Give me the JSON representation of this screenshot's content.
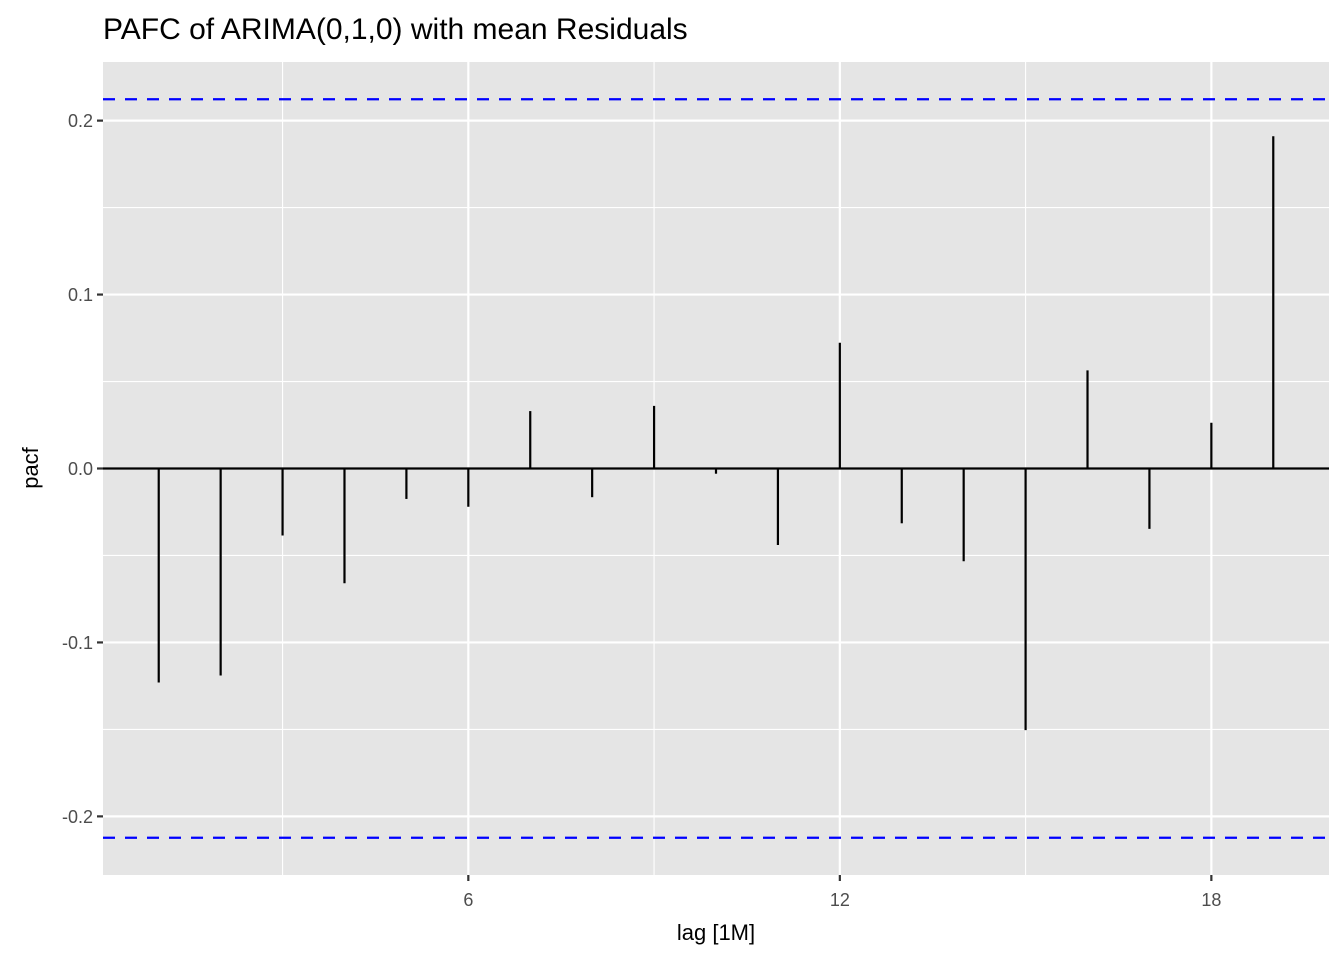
{
  "chart_data": {
    "type": "bar",
    "subtype": "pacf-correlogram",
    "title": "PAFC of ARIMA(0,1,0) with mean Residuals",
    "xlabel": "lag [1M]",
    "ylabel": "pacf",
    "x": [
      1,
      2,
      3,
      4,
      5,
      6,
      7,
      8,
      9,
      10,
      11,
      12,
      13,
      14,
      15,
      16,
      17,
      18,
      19
    ],
    "values": [
      -0.123,
      -0.119,
      -0.0385,
      -0.066,
      -0.0175,
      -0.022,
      0.033,
      -0.0165,
      0.036,
      -0.003,
      -0.044,
      0.0723,
      -0.0315,
      -0.0533,
      -0.1504,
      0.0564,
      -0.0347,
      0.0263,
      0.191
    ],
    "xlim": [
      0.1,
      19.9
    ],
    "ylim": [
      -0.2337,
      0.2337
    ],
    "x_ticks": [
      6,
      12,
      18
    ],
    "x_tick_labels": [
      "6",
      "12",
      "18"
    ],
    "x_minor_ticks": [
      3,
      9,
      15
    ],
    "y_ticks": [
      -0.2,
      -0.1,
      0.0,
      0.1,
      0.2
    ],
    "y_tick_labels": [
      "-0.2",
      "-0.1",
      "0.0",
      "0.1",
      "0.2"
    ],
    "y_minor_ticks": [
      -0.15,
      -0.05,
      0.05,
      0.15
    ],
    "confidence_bound": 0.2123,
    "confidence_color": "#0000ff",
    "spike_color": "#000000",
    "panel_background": "#e5e5e5",
    "grid_color": "#ffffff",
    "grid": true,
    "legend": "none"
  }
}
